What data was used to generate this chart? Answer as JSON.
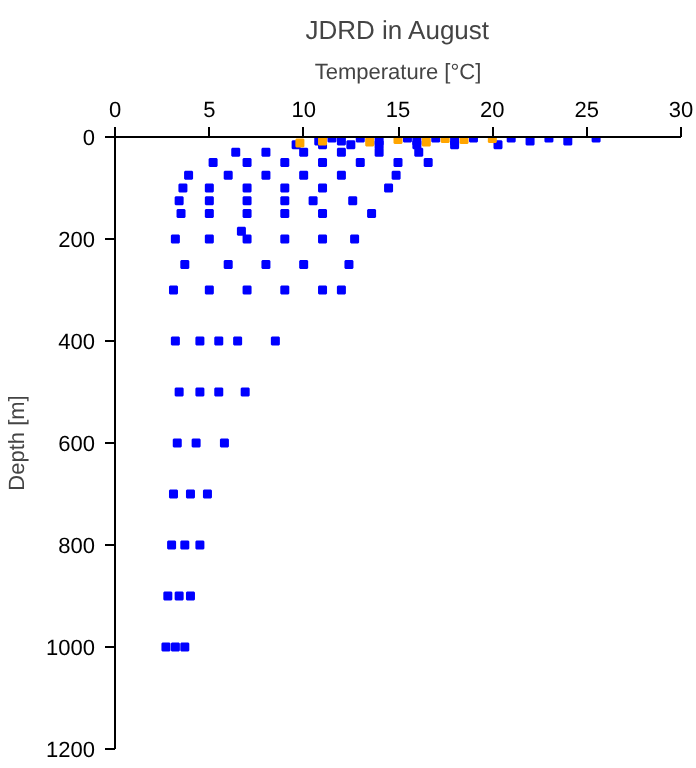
{
  "chart_data": {
    "type": "scatter",
    "title": "JDRD in August",
    "xlabel": "Temperature [°C]",
    "ylabel": "Depth [m]",
    "xlim": [
      0,
      30
    ],
    "xticks": [
      0,
      5,
      10,
      15,
      20,
      25,
      30
    ],
    "ylim": [
      1200,
      0
    ],
    "yticks": [
      0,
      200,
      400,
      600,
      800,
      1000,
      1200
    ],
    "grid": false,
    "marker": "square",
    "series": [
      {
        "color": "#0000ff",
        "x": [
          11.5,
          13,
          15.5,
          17,
          19,
          21,
          23,
          25.5,
          10.8,
          12,
          14,
          16,
          18,
          22,
          24,
          9.6,
          11,
          12.5,
          14,
          16,
          18,
          20.3,
          6.4,
          8,
          10,
          12,
          14,
          16.1,
          5.2,
          7,
          9,
          11,
          13,
          15,
          16.6,
          3.9,
          6,
          8,
          10,
          12,
          14.9,
          3.6,
          5,
          7,
          9,
          11,
          14.5,
          3.4,
          5,
          7,
          9,
          10.5,
          12.6,
          3.5,
          5,
          7,
          9,
          11,
          13.6,
          3.2,
          5,
          7,
          9,
          11,
          12.7,
          6.7,
          3.7,
          6,
          8,
          10,
          12.4,
          3.1,
          5,
          7,
          9,
          11,
          12,
          3.2,
          4.5,
          5.5,
          6.5,
          8.5,
          3.4,
          4.5,
          5.5,
          6.9,
          3.3,
          4.3,
          5.8,
          3.1,
          4,
          4.9,
          3.0,
          3.7,
          4.5,
          2.8,
          3.4,
          4.0,
          2.7,
          3.2,
          3.7
        ],
        "values": [
          2,
          2,
          2,
          2,
          2,
          2,
          2,
          2,
          8,
          8,
          8,
          8,
          8,
          8,
          8,
          15,
          15,
          15,
          15,
          15,
          15,
          15,
          30,
          30,
          30,
          30,
          30,
          30,
          50,
          50,
          50,
          50,
          50,
          50,
          50,
          75,
          75,
          75,
          75,
          75,
          75,
          100,
          100,
          100,
          100,
          100,
          100,
          125,
          125,
          125,
          125,
          125,
          125,
          150,
          150,
          150,
          150,
          150,
          150,
          200,
          200,
          200,
          200,
          200,
          200,
          185,
          250,
          250,
          250,
          250,
          250,
          300,
          300,
          300,
          300,
          300,
          300,
          400,
          400,
          400,
          400,
          400,
          500,
          500,
          500,
          500,
          600,
          600,
          600,
          700,
          700,
          700,
          800,
          800,
          800,
          900,
          900,
          900,
          1000,
          1000,
          1000
        ]
      },
      {
        "color": "#ffa500",
        "x": [
          9.8,
          11,
          13.5,
          15,
          16.5,
          17.5,
          18.5,
          20
        ],
        "values": [
          12,
          8,
          10,
          5,
          10,
          3,
          5,
          3
        ]
      }
    ]
  }
}
